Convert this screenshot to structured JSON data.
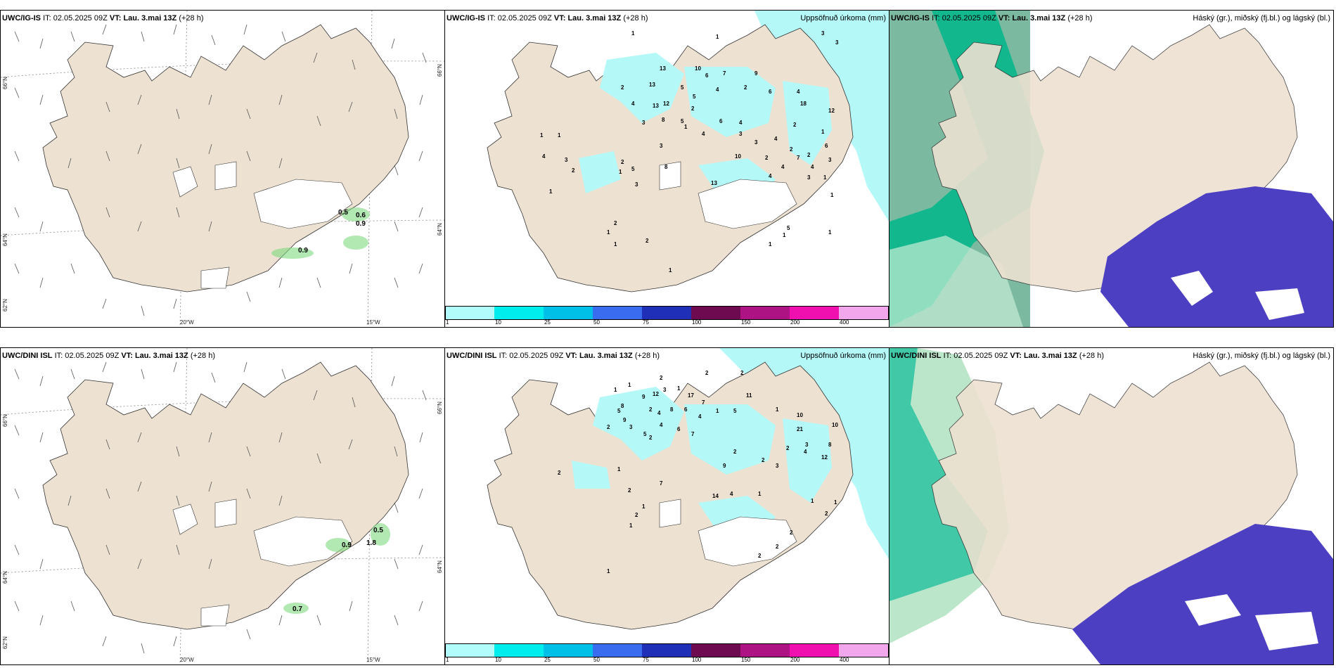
{
  "rows": [
    {
      "model": "UWC/IG-IS",
      "it_label": "IT:",
      "it_value": "02.05.2025 09Z",
      "vt_label": "VT:",
      "vt_value": "Lau. 3.mai 13Z",
      "lead": "(+28 h)",
      "wind_values": [
        "0.5",
        "0.9",
        "0.6",
        "0.9"
      ],
      "precip_values": [
        "1",
        "1",
        "3",
        "3",
        "13",
        "10",
        "6",
        "7",
        "9",
        "2",
        "13",
        "5",
        "4",
        "2",
        "4",
        "13",
        "12",
        "5",
        "6",
        "4",
        "2",
        "8",
        "5",
        "3",
        "6",
        "4",
        "2",
        "18",
        "12",
        "4",
        "3",
        "4",
        "3",
        "2",
        "7",
        "1",
        "6",
        "2",
        "4",
        "3",
        "3",
        "1",
        "10",
        "2",
        "4",
        "4",
        "1",
        "3",
        "8",
        "5",
        "3",
        "1",
        "2",
        "13",
        "1",
        "4",
        "3",
        "2",
        "1",
        "1",
        "1",
        "1",
        "2",
        "2",
        "1",
        "1",
        "1",
        "5",
        "1",
        "1"
      ]
    },
    {
      "model": "UWC/DINI ISL",
      "it_label": "IT:",
      "it_value": "02.05.2025 09Z",
      "vt_label": "VT:",
      "vt_value": "Lau. 3.mai 13Z",
      "lead": "(+28 h)",
      "wind_values": [
        "0.5",
        "0.9",
        "0.7",
        "1.8"
      ],
      "precip_values": [
        "1",
        "2",
        "1",
        "12",
        "9",
        "3",
        "1",
        "8",
        "2",
        "17",
        "7",
        "11",
        "2",
        "9",
        "5",
        "2",
        "4",
        "8",
        "6",
        "4",
        "1",
        "5",
        "2",
        "3",
        "4",
        "6",
        "10",
        "10",
        "1",
        "5",
        "7",
        "2",
        "2",
        "21",
        "3",
        "4",
        "12",
        "8",
        "2",
        "2",
        "3",
        "9",
        "1",
        "2",
        "7",
        "2",
        "14",
        "4",
        "1",
        "1",
        "2",
        "1",
        "1",
        "1",
        "2",
        "2",
        "2",
        "2",
        "1"
      ]
    }
  ],
  "axis_labels": {
    "lat_66": "66°N",
    "lat_64": "64°N",
    "lat_62": "62°N",
    "lon_20": "20°W",
    "lon_15": "15°W"
  },
  "precip_title": "Uppsöfnuð úrkoma (mm)",
  "cloud_title": "Háský (gr.), miðský (fj.bl.) og lágský (bl.)",
  "colorbar": {
    "ticks": [
      "1",
      "10",
      "25",
      "50",
      "75",
      "100",
      "150",
      "200",
      "400"
    ],
    "colors": [
      "#b3fcfc",
      "#00eded",
      "#00c0e8",
      "#3a6cf0",
      "#1f2fb8",
      "#6e0a4f",
      "#ae1383",
      "#f010b0",
      "#f2a6ec"
    ]
  },
  "colors": {
    "land": "#ede1d1",
    "precip": "#b4f8f8",
    "cloud_high": "#00b68a",
    "cloud_low": "#4c3fc2"
  }
}
